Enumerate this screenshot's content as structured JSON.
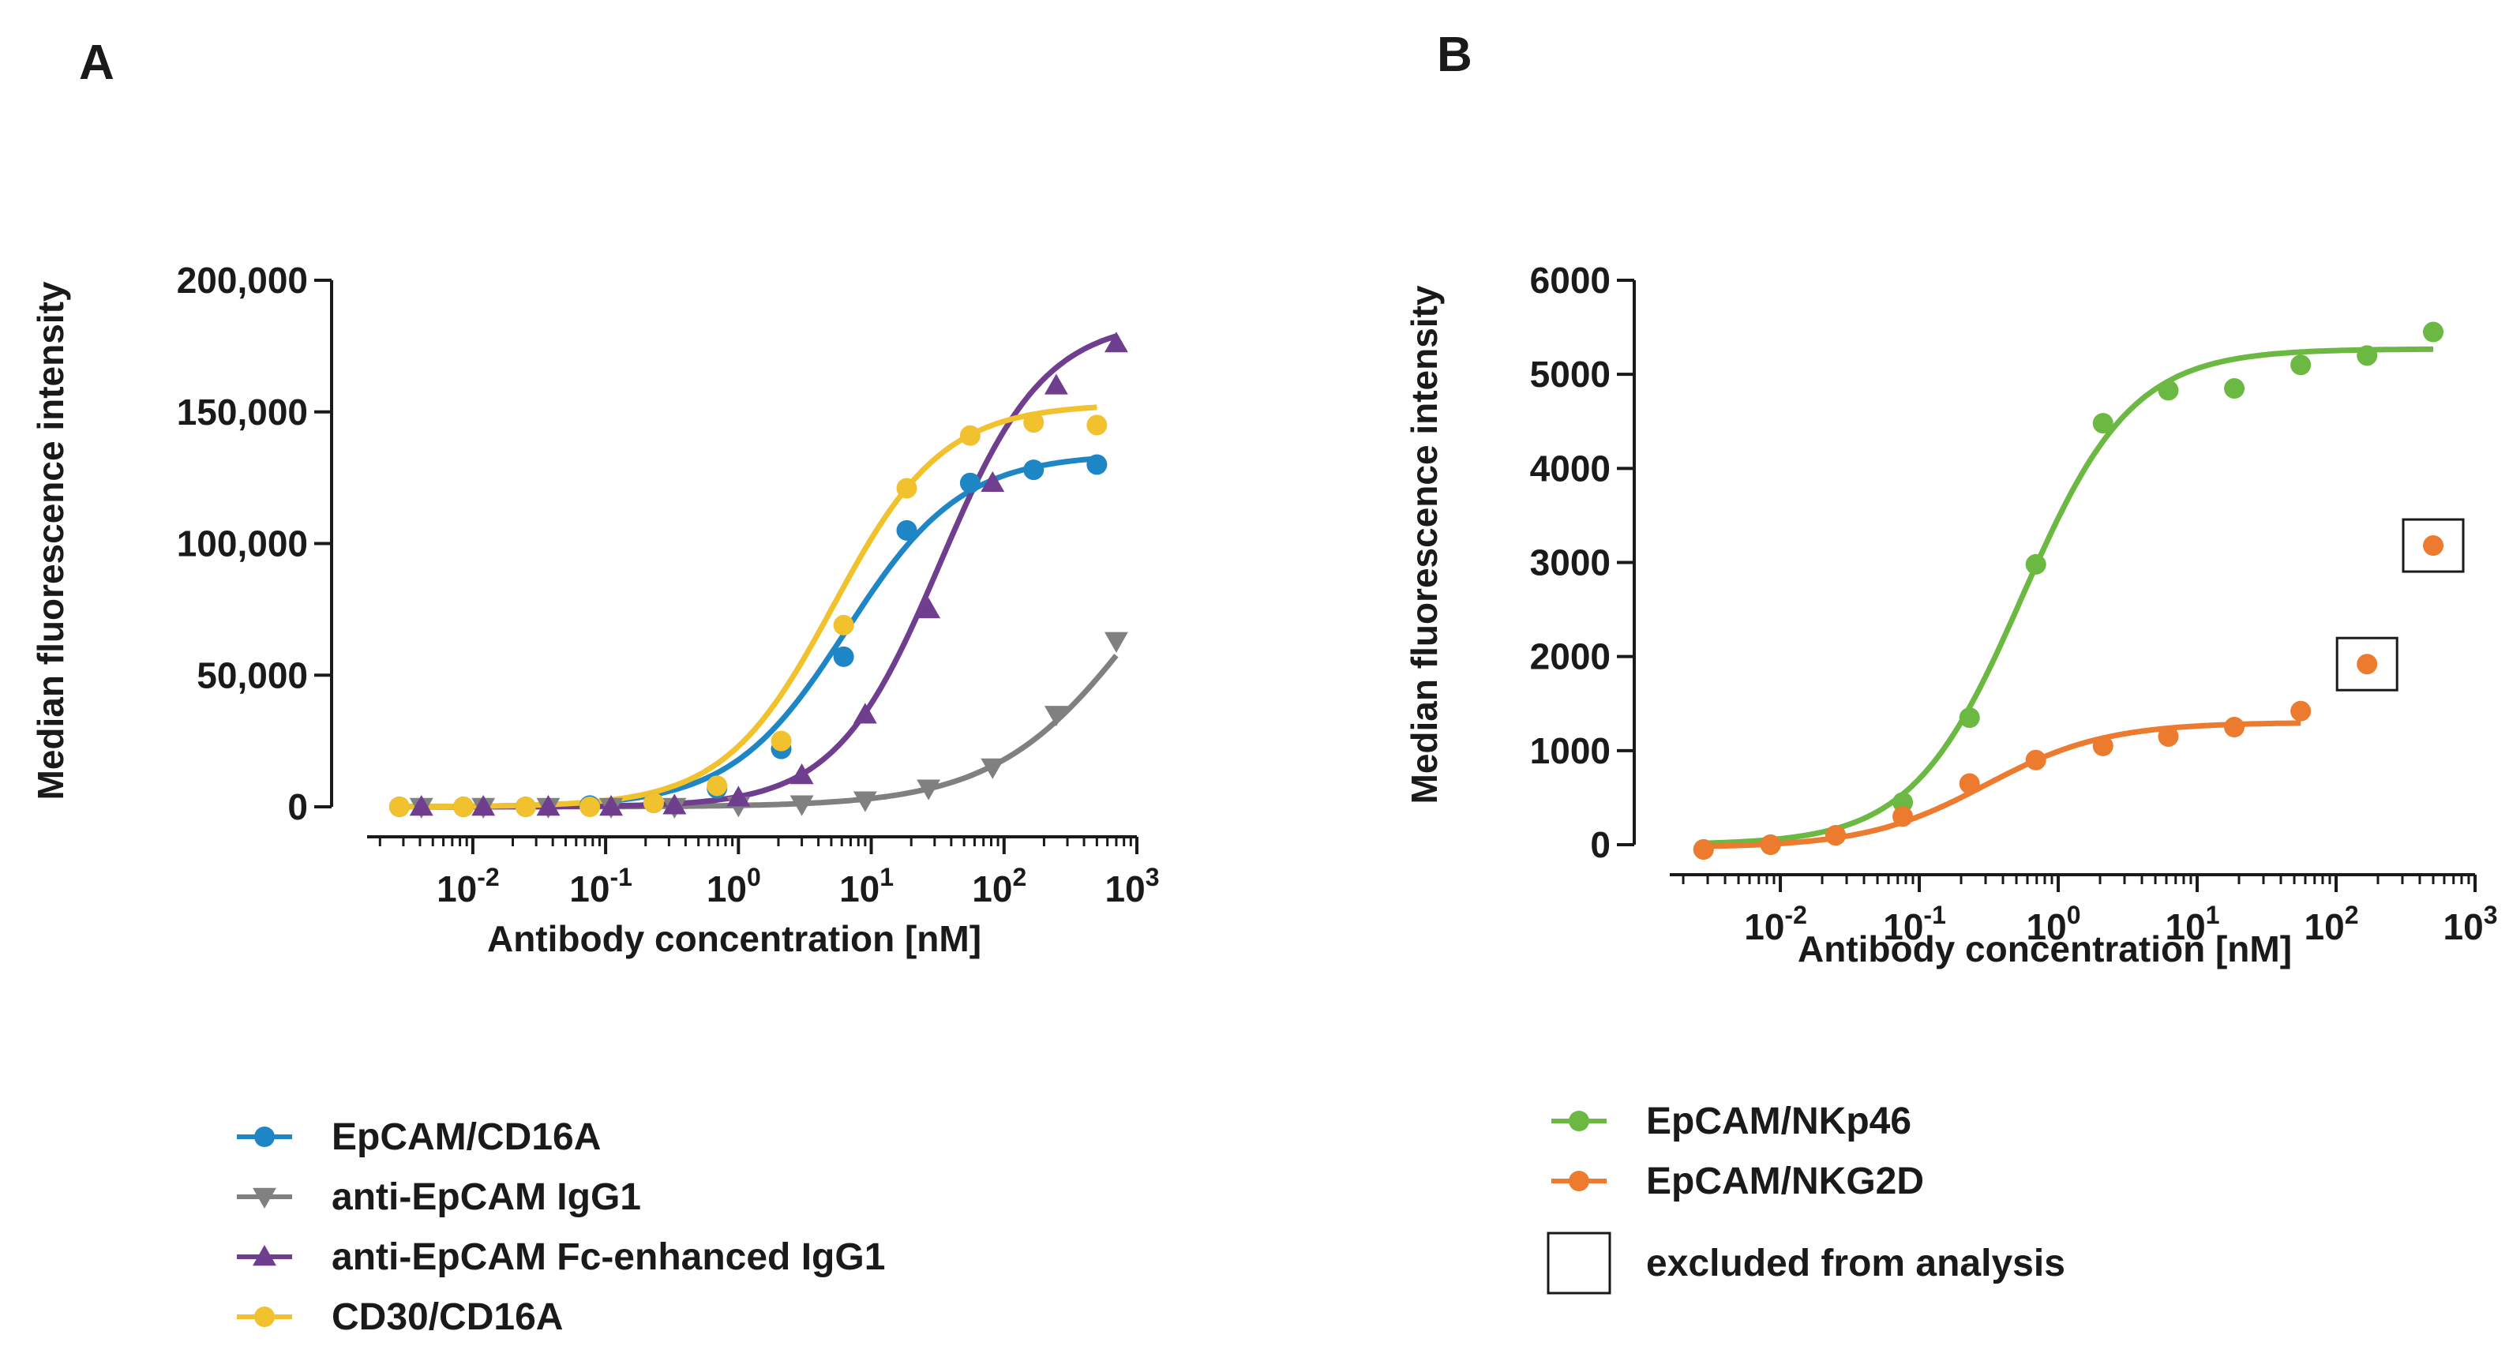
{
  "chart_data": [
    {
      "panel": "A",
      "type": "scatter",
      "x_scale": "log",
      "xlabel": "Antibody concentration [nM]",
      "ylabel": "Median fluorescence intensity",
      "xlim": [
        0.0016,
        1000
      ],
      "ylim": [
        0,
        200000
      ],
      "x_ticks": [
        {
          "base": "10",
          "exp": "-2",
          "value": 0.01
        },
        {
          "base": "10",
          "exp": "-1",
          "value": 0.1
        },
        {
          "base": "10",
          "exp": "0",
          "value": 1
        },
        {
          "base": "10",
          "exp": "1",
          "value": 10
        },
        {
          "base": "10",
          "exp": "2",
          "value": 100
        },
        {
          "base": "10",
          "exp": "3",
          "value": 1000
        }
      ],
      "y_ticks": [
        {
          "label": "0",
          "value": 0
        },
        {
          "label": "50,000",
          "value": 50000
        },
        {
          "label": "100,000",
          "value": 100000
        },
        {
          "label": "150,000",
          "value": 150000
        },
        {
          "label": "200,000",
          "value": 200000
        }
      ],
      "series": [
        {
          "name": "EpCAM/CD16A",
          "color": "#1f86c6",
          "marker": "circle",
          "x": [
            0.0028,
            0.0085,
            0.025,
            0.076,
            0.23,
            0.69,
            2.1,
            6.2,
            18.5,
            55.6,
            167,
            500
          ],
          "y": [
            0,
            0,
            0,
            500,
            1500,
            7000,
            22000,
            57000,
            105000,
            123000,
            128000,
            130000
          ],
          "fit": {
            "bottom": 0,
            "top": 134000,
            "ec50": 6.5,
            "hill": 1.0,
            "xmin": 0.0028,
            "xmax": 500
          }
        },
        {
          "name": "anti-EpCAM IgG1",
          "color": "#808080",
          "marker": "triangle-down",
          "x": [
            0.0041,
            0.012,
            0.037,
            0.11,
            0.33,
            1.0,
            3.0,
            9.0,
            27,
            82,
            247,
            700
          ],
          "y": [
            0,
            0,
            0,
            0,
            0,
            500,
            1000,
            2500,
            7000,
            15000,
            35000,
            63000
          ],
          "fit": {
            "bottom": 0,
            "top": 140000,
            "ec50": 1100,
            "hill": 0.8,
            "xmin": 0.0041,
            "xmax": 700
          }
        },
        {
          "name": "anti-EpCAM Fc-enhanced IgG1",
          "color": "#6f3e8f",
          "marker": "triangle-up",
          "x": [
            0.0041,
            0.012,
            0.037,
            0.11,
            0.33,
            1.0,
            3.0,
            9.0,
            27,
            82,
            247,
            700
          ],
          "y": [
            0,
            0,
            0,
            0,
            500,
            3500,
            12000,
            35000,
            75000,
            123000,
            160000,
            176000
          ],
          "fit": {
            "bottom": 0,
            "top": 185000,
            "ec50": 33,
            "hill": 1.1,
            "xmin": 0.0041,
            "xmax": 700
          }
        },
        {
          "name": "CD30/CD16A",
          "color": "#f2c12e",
          "marker": "circle",
          "x": [
            0.0028,
            0.0085,
            0.025,
            0.076,
            0.23,
            0.69,
            2.1,
            6.2,
            18.5,
            55.6,
            167,
            500
          ],
          "y": [
            0,
            0,
            0,
            0,
            1500,
            8000,
            25000,
            69000,
            121000,
            141000,
            146000,
            145000
          ],
          "fit": {
            "bottom": 0,
            "top": 153000,
            "ec50": 5.2,
            "hill": 1.05,
            "xmin": 0.0028,
            "xmax": 500
          }
        }
      ],
      "legend": [
        {
          "label": "EpCAM/CD16A",
          "color": "#1f86c6",
          "marker": "circle"
        },
        {
          "label": "anti-EpCAM IgG1",
          "color": "#808080",
          "marker": "triangle-down"
        },
        {
          "label": "anti-EpCAM Fc-enhanced IgG1",
          "color": "#6f3e8f",
          "marker": "triangle-up"
        },
        {
          "label": "CD30/CD16A",
          "color": "#f2c12e",
          "marker": "circle"
        }
      ]
    },
    {
      "panel": "B",
      "type": "scatter",
      "x_scale": "log",
      "xlabel": "Antibody concentration [nM]",
      "ylabel": "Median fluorescence intensity",
      "xlim": [
        0.0016,
        1000
      ],
      "ylim": [
        0,
        6000
      ],
      "x_ticks": [
        {
          "base": "10",
          "exp": "-2",
          "value": 0.01
        },
        {
          "base": "10",
          "exp": "-1",
          "value": 0.1
        },
        {
          "base": "10",
          "exp": "0",
          "value": 1
        },
        {
          "base": "10",
          "exp": "1",
          "value": 10
        },
        {
          "base": "10",
          "exp": "2",
          "value": 100
        },
        {
          "base": "10",
          "exp": "3",
          "value": 1000
        }
      ],
      "y_ticks": [
        {
          "label": "0",
          "value": 0
        },
        {
          "label": "1000",
          "value": 1000
        },
        {
          "label": "2000",
          "value": 2000
        },
        {
          "label": "3000",
          "value": 3000
        },
        {
          "label": "4000",
          "value": 4000
        },
        {
          "label": "5000",
          "value": 5000
        },
        {
          "label": "6000",
          "value": 6000
        }
      ],
      "series": [
        {
          "name": "EpCAM/NKp46",
          "color": "#6bb843",
          "marker": "circle",
          "x": [
            0.0028,
            0.0085,
            0.025,
            0.076,
            0.23,
            0.69,
            2.1,
            6.2,
            18.5,
            55.6,
            167,
            500
          ],
          "y": [
            -50,
            0,
            100,
            450,
            1350,
            2980,
            4480,
            4830,
            4850,
            5100,
            5200,
            5450
          ],
          "fit": {
            "bottom": 0,
            "top": 5270,
            "ec50": 0.55,
            "hill": 1.1,
            "xmin": 0.0028,
            "xmax": 500
          }
        },
        {
          "name": "EpCAM/NKG2D",
          "color": "#ec7a2f",
          "marker": "circle",
          "x": [
            0.0028,
            0.0085,
            0.025,
            0.076,
            0.23,
            0.69,
            2.1,
            6.2,
            18.5,
            55.6,
            167,
            500
          ],
          "y": [
            -50,
            0,
            100,
            300,
            650,
            900,
            1050,
            1150,
            1250,
            1420,
            1920,
            3180
          ],
          "excluded": [
            false,
            false,
            false,
            false,
            false,
            false,
            false,
            false,
            false,
            false,
            true,
            true
          ],
          "fit": {
            "bottom": -30,
            "top": 1300,
            "ec50": 0.3,
            "hill": 1.0,
            "xmin": 0.0028,
            "xmax": 55.6
          }
        }
      ],
      "legend": [
        {
          "label": "EpCAM/NKp46",
          "color": "#6bb843",
          "marker": "circle"
        },
        {
          "label": "EpCAM/NKG2D",
          "color": "#ec7a2f",
          "marker": "circle"
        },
        {
          "label": "excluded from analysis",
          "color": "#1a1a1a",
          "marker": "box"
        }
      ]
    }
  ]
}
